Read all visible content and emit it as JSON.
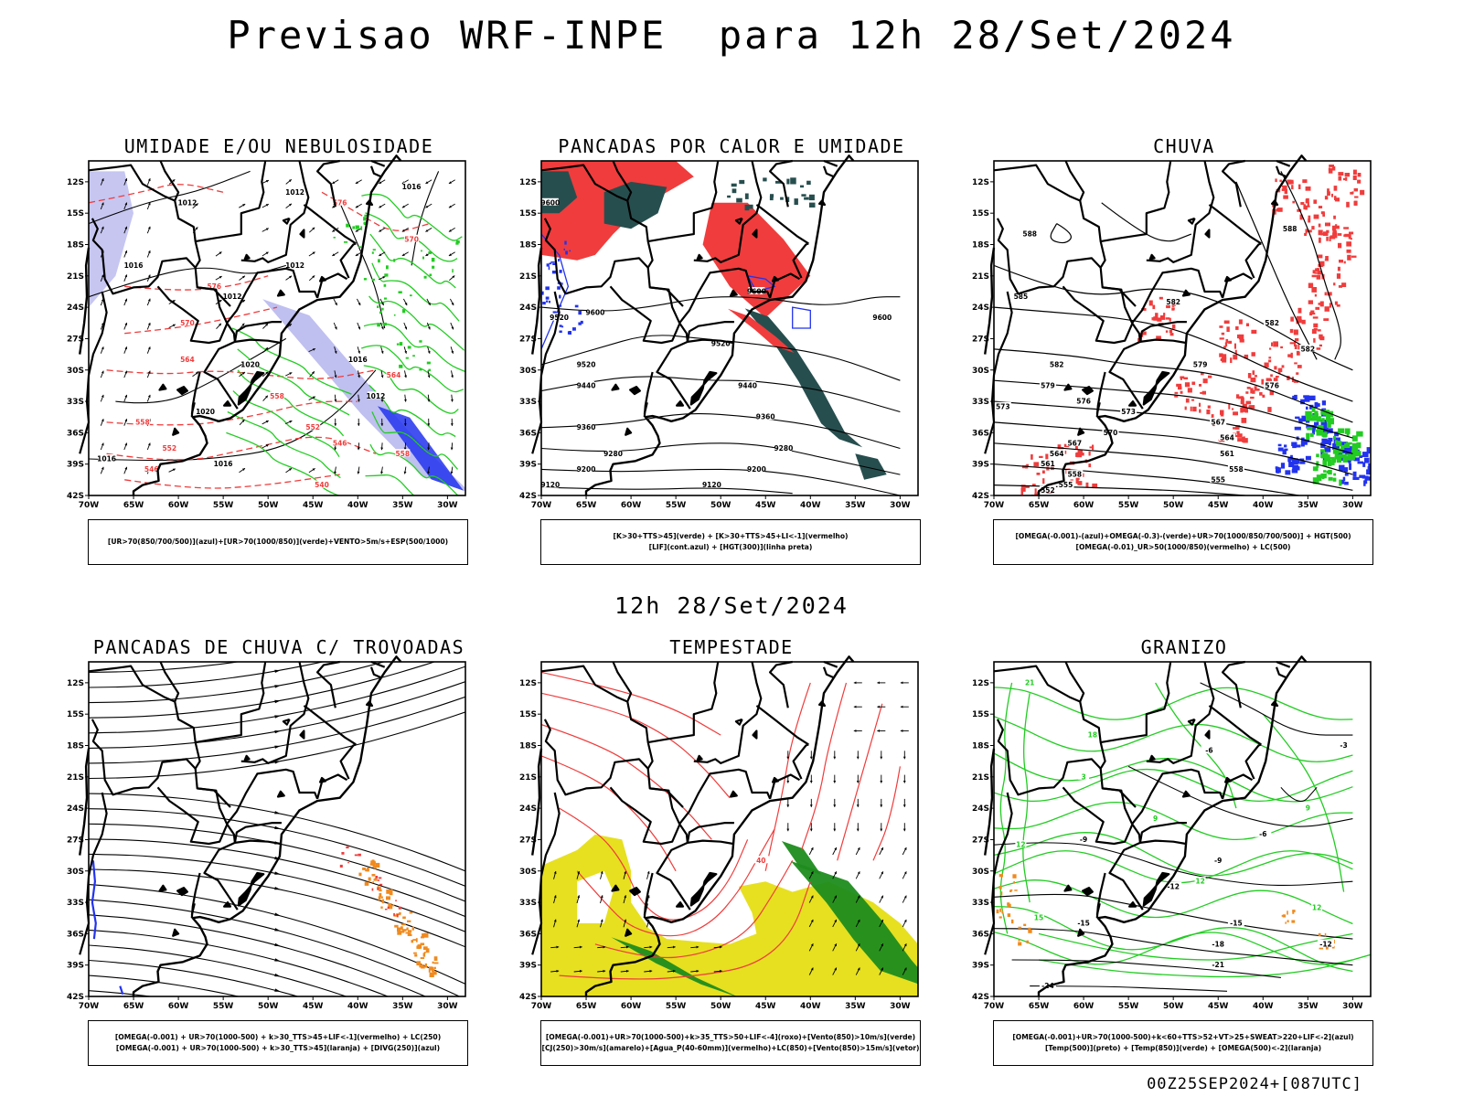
{
  "header": {
    "title": "Previsao WRF-INPE  para 12h 28/Set/2024",
    "mid_date": "12h 28/Set/2024"
  },
  "footer": {
    "run_label": "00Z25SEP2024+[087UTC]"
  },
  "axes": {
    "lat_labels": [
      "12S",
      "15S",
      "18S",
      "21S",
      "24S",
      "27S",
      "30S",
      "33S",
      "36S",
      "39S",
      "42S"
    ],
    "lon_labels": [
      "70W",
      "65W",
      "60W",
      "55W",
      "50W",
      "45W",
      "40W",
      "35W",
      "30W"
    ],
    "lat_range": [
      -42,
      -10
    ],
    "lon_range": [
      -70,
      -28
    ]
  },
  "colors": {
    "red": "#f03c3c",
    "green": "#22cc22",
    "blue": "#2233ee",
    "lavender": "#b8b8ee",
    "dark_teal": "#274e4e",
    "yellow": "#e6e020",
    "orange": "#f08a1e",
    "dark_green": "#1e8c1e"
  },
  "panels": [
    {
      "id": "umidade",
      "title": "UMIDADE E/OU NEBULOSIDADE",
      "legend": [
        "[UR>70(850/700/500)](azul)+[UR>70(1000/850)](verde)+VENTO>5m/s+ESP(500/1000)"
      ],
      "labels": [
        {
          "t": "1012",
          "lon": -59,
          "lat": -14
        },
        {
          "t": "1012",
          "lon": -47,
          "lat": -13
        },
        {
          "t": "1012",
          "lon": -47,
          "lat": -20
        },
        {
          "t": "1012",
          "lon": -54,
          "lat": -23
        },
        {
          "t": "1016",
          "lon": -65,
          "lat": -20
        },
        {
          "t": "1020",
          "lon": -52,
          "lat": -29.5
        },
        {
          "t": "1020",
          "lon": -57,
          "lat": -34
        },
        {
          "t": "1016",
          "lon": -40,
          "lat": -29
        },
        {
          "t": "1012",
          "lon": -38,
          "lat": -32.5
        },
        {
          "t": "1016",
          "lon": -68,
          "lat": -38.5
        },
        {
          "t": "1016",
          "lon": -55,
          "lat": -39
        },
        {
          "t": "1016",
          "lon": -34,
          "lat": -12.5
        },
        {
          "t": "576",
          "lon": -42,
          "lat": -14
        },
        {
          "t": "570",
          "lon": -34,
          "lat": -17.5
        },
        {
          "t": "576",
          "lon": -56,
          "lat": -22
        },
        {
          "t": "570",
          "lon": -59,
          "lat": -25.5
        },
        {
          "t": "564",
          "lon": -59,
          "lat": -29
        },
        {
          "t": "558",
          "lon": -49,
          "lat": -32.5
        },
        {
          "t": "558",
          "lon": -64,
          "lat": -35
        },
        {
          "t": "552",
          "lon": -61,
          "lat": -37.5
        },
        {
          "t": "552",
          "lon": -45,
          "lat": -35.5
        },
        {
          "t": "546",
          "lon": -42,
          "lat": -37
        },
        {
          "t": "546",
          "lon": -63,
          "lat": -39.5
        },
        {
          "t": "540",
          "lon": -44,
          "lat": -41
        },
        {
          "t": "564",
          "lon": -36,
          "lat": -30.5
        },
        {
          "t": "558",
          "lon": -35,
          "lat": -38
        }
      ]
    },
    {
      "id": "pancadas_calor",
      "title": "PANCADAS POR CALOR E UMIDADE",
      "legend": [
        "[K>30+TTS>45](verde) + [K>30+TTS>45+LI<-1](vermelho)",
        "[LIF](cont.azul) + [HGT(300)](linha preta)"
      ],
      "labels": [
        {
          "t": "9600",
          "lon": -69,
          "lat": -14
        },
        {
          "t": "9600",
          "lon": -46,
          "lat": -22.5
        },
        {
          "t": "9600",
          "lon": -32,
          "lat": -25
        },
        {
          "t": "9600",
          "lon": -64,
          "lat": -24.5
        },
        {
          "t": "9520",
          "lon": -68,
          "lat": -25
        },
        {
          "t": "9520",
          "lon": -50,
          "lat": -27.5
        },
        {
          "t": "9520",
          "lon": -65,
          "lat": -29.5
        },
        {
          "t": "9440",
          "lon": -65,
          "lat": -31.5
        },
        {
          "t": "9440",
          "lon": -47,
          "lat": -31.5
        },
        {
          "t": "9360",
          "lon": -65,
          "lat": -35.5
        },
        {
          "t": "9360",
          "lon": -45,
          "lat": -34.5
        },
        {
          "t": "9280",
          "lon": -62,
          "lat": -38
        },
        {
          "t": "9280",
          "lon": -43,
          "lat": -37.5
        },
        {
          "t": "9200",
          "lon": -65,
          "lat": -39.5
        },
        {
          "t": "9200",
          "lon": -46,
          "lat": -39.5
        },
        {
          "t": "9120",
          "lon": -69,
          "lat": -41
        },
        {
          "t": "9120",
          "lon": -51,
          "lat": -41
        }
      ]
    },
    {
      "id": "chuva",
      "title": "CHUVA",
      "legend": [
        "[OMEGA(-0.001)-(azul)+OMEGA(-0.3)-(verde)+UR>70(1000/850/700/500)] + HGT(500)",
        "[OMEGA(-0.01)_UR>50(1000/850)(vermelho) + LC(500)"
      ],
      "labels": [
        {
          "t": "588",
          "lon": -66,
          "lat": -17
        },
        {
          "t": "588",
          "lon": -37,
          "lat": -16.5
        },
        {
          "t": "585",
          "lon": -67,
          "lat": -23
        },
        {
          "t": "582",
          "lon": -50,
          "lat": -23.5
        },
        {
          "t": "582",
          "lon": -35,
          "lat": -28
        },
        {
          "t": "582",
          "lon": -63,
          "lat": -29.5
        },
        {
          "t": "579",
          "lon": -47,
          "lat": -29.5
        },
        {
          "t": "579",
          "lon": -64,
          "lat": -31.5
        },
        {
          "t": "576",
          "lon": -60,
          "lat": -33
        },
        {
          "t": "576",
          "lon": -39,
          "lat": -31.5
        },
        {
          "t": "573",
          "lon": -55,
          "lat": -34
        },
        {
          "t": "573",
          "lon": -69,
          "lat": -33.5
        },
        {
          "t": "570",
          "lon": -57,
          "lat": -36
        },
        {
          "t": "567",
          "lon": -61,
          "lat": -37
        },
        {
          "t": "567",
          "lon": -45,
          "lat": -35
        },
        {
          "t": "564",
          "lon": -63,
          "lat": -38
        },
        {
          "t": "564",
          "lon": -44,
          "lat": -36.5
        },
        {
          "t": "561",
          "lon": -64,
          "lat": -39
        },
        {
          "t": "561",
          "lon": -44,
          "lat": -38
        },
        {
          "t": "558",
          "lon": -61,
          "lat": -40
        },
        {
          "t": "558",
          "lon": -43,
          "lat": -39.5
        },
        {
          "t": "555",
          "lon": -62,
          "lat": -41
        },
        {
          "t": "555",
          "lon": -45,
          "lat": -40.5
        },
        {
          "t": "552",
          "lon": -64,
          "lat": -41.5
        },
        {
          "t": "582",
          "lon": -39,
          "lat": -25.5
        }
      ]
    },
    {
      "id": "trovoadas",
      "title": "PANCADAS DE CHUVA C/ TROVOADAS",
      "legend": [
        "[OMEGA(-0.001) + UR>70(1000-500) + k>30_TTS>45+LIF<-1](vermelho) + LC(250)",
        "[OMEGA(-0.001) + UR>70(1000-500) + k>30_TTS>45](laranja) + [DIVG(250)](azul)"
      ],
      "labels": []
    },
    {
      "id": "tempestade",
      "title": "TEMPESTADE",
      "legend": [
        "[OMEGA(-0.001)+UR>70(1000-500)+k>35_TTS>50+LIF<-4](roxo)+[Vento(850)>10m/s](verde)",
        "[CJ(250)>30m/s](amarelo)+[Agua_P(40-60mm)](vermelho)+LC(850)+[Vento(850)>15m/s](vetor)"
      ],
      "labels": [
        {
          "t": "40",
          "lon": -45.5,
          "lat": -29
        }
      ]
    },
    {
      "id": "granizo",
      "title": "GRANIZO",
      "legend": [
        "[OMEGA(-0.001)+UR>70(1000-500)+k<60+TTS>52+VT>25+SWEAT>220+LIF<-2](azul)",
        "[Temp(500)](preto) + [Temp(850)](verde) + [OMEGA(500)<-2](laranja)"
      ],
      "labels": [
        {
          "t": "-3",
          "lon": -31,
          "lat": -18
        },
        {
          "t": "-6",
          "lon": -46,
          "lat": -18.5
        },
        {
          "t": "-6",
          "lon": -40,
          "lat": -26.5
        },
        {
          "t": "-9",
          "lon": -60,
          "lat": -27
        },
        {
          "t": "-9",
          "lon": -45,
          "lat": -29
        },
        {
          "t": "-12",
          "lon": -50,
          "lat": -31.5
        },
        {
          "t": "-12",
          "lon": -33,
          "lat": -37
        },
        {
          "t": "-15",
          "lon": -60,
          "lat": -35
        },
        {
          "t": "-15",
          "lon": -43,
          "lat": -35
        },
        {
          "t": "-18",
          "lon": -45,
          "lat": -37
        },
        {
          "t": "-21",
          "lon": -45,
          "lat": -39
        },
        {
          "t": "-24",
          "lon": -64,
          "lat": -41
        },
        {
          "t": "3",
          "lon": -60,
          "lat": -21
        },
        {
          "t": "9",
          "lon": -52,
          "lat": -25
        },
        {
          "t": "12",
          "lon": -47,
          "lat": -31
        },
        {
          "t": "15",
          "lon": -65,
          "lat": -34.5
        },
        {
          "t": "12",
          "lon": -67,
          "lat": -27.5
        },
        {
          "t": "21",
          "lon": -66,
          "lat": -12
        },
        {
          "t": "18",
          "lon": -59,
          "lat": -17
        },
        {
          "t": "12",
          "lon": -34,
          "lat": -33.5
        },
        {
          "t": "9",
          "lon": -35,
          "lat": -24
        }
      ]
    }
  ]
}
